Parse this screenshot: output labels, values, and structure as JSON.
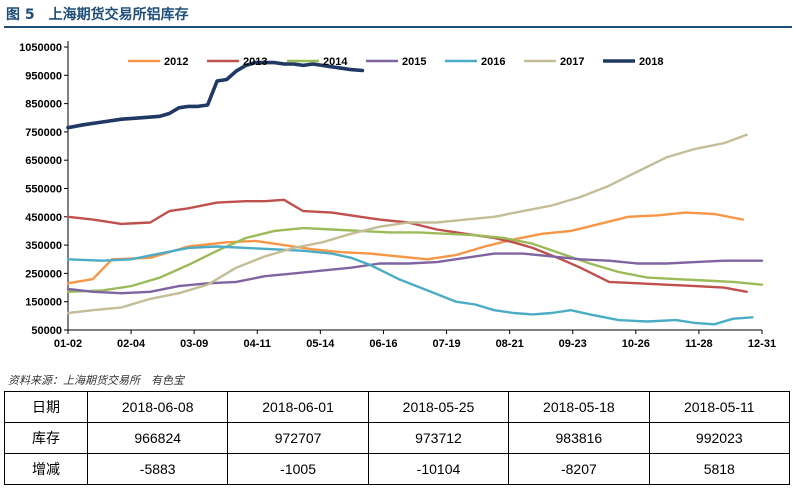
{
  "figure": {
    "number": "图 5",
    "title": "上海期货交易所铝库存"
  },
  "source": "资料来源：上海期货交易所　有色宝",
  "chart_data": {
    "type": "line",
    "title": "上海期货交易所铝库存",
    "xlabel": "",
    "ylabel": "",
    "x_ticks": [
      "01-02",
      "02-04",
      "03-09",
      "04-11",
      "05-14",
      "06-16",
      "07-19",
      "08-21",
      "09-23",
      "10-26",
      "11-28",
      "12-31"
    ],
    "x_range_days": [
      2,
      365
    ],
    "y_ticks": [
      50000,
      150000,
      250000,
      350000,
      450000,
      550000,
      650000,
      750000,
      850000,
      950000,
      1050000
    ],
    "ylim": [
      50000,
      1050000
    ],
    "grid": false,
    "legend": "top",
    "series": [
      {
        "name": "2012",
        "color": "#f79646",
        "x": [
          2,
          15,
          25,
          45,
          65,
          85,
          100,
          115,
          130,
          145,
          160,
          175,
          190,
          205,
          220,
          235,
          250,
          265,
          280,
          295,
          310,
          325,
          340,
          355
        ],
        "y": [
          215000,
          230000,
          300000,
          305000,
          345000,
          360000,
          365000,
          350000,
          335000,
          325000,
          320000,
          310000,
          300000,
          315000,
          345000,
          370000,
          390000,
          400000,
          425000,
          450000,
          455000,
          465000,
          460000,
          440000
        ]
      },
      {
        "name": "2013",
        "color": "#c0504d",
        "x": [
          2,
          15,
          30,
          45,
          55,
          65,
          80,
          95,
          105,
          115,
          125,
          140,
          155,
          165,
          180,
          195,
          210,
          225,
          235,
          245,
          260,
          270,
          285,
          300,
          315,
          330,
          345,
          357
        ],
        "y": [
          450000,
          440000,
          425000,
          430000,
          470000,
          480000,
          500000,
          505000,
          505000,
          510000,
          470000,
          465000,
          450000,
          440000,
          430000,
          405000,
          390000,
          375000,
          360000,
          340000,
          300000,
          270000,
          220000,
          215000,
          210000,
          205000,
          200000,
          185000
        ]
      },
      {
        "name": "2014",
        "color": "#9bbb59",
        "x": [
          2,
          20,
          35,
          50,
          65,
          80,
          95,
          110,
          125,
          140,
          155,
          170,
          185,
          200,
          215,
          230,
          245,
          260,
          275,
          290,
          305,
          320,
          335,
          350,
          365
        ],
        "y": [
          185000,
          190000,
          205000,
          235000,
          280000,
          330000,
          375000,
          400000,
          410000,
          405000,
          400000,
          395000,
          395000,
          390000,
          385000,
          375000,
          355000,
          320000,
          285000,
          255000,
          235000,
          230000,
          225000,
          220000,
          210000
        ]
      },
      {
        "name": "2015",
        "color": "#8064a2",
        "x": [
          2,
          15,
          30,
          45,
          60,
          75,
          90,
          105,
          120,
          135,
          150,
          165,
          180,
          195,
          210,
          225,
          240,
          255,
          270,
          285,
          300,
          315,
          330,
          345,
          365
        ],
        "y": [
          195000,
          185000,
          180000,
          185000,
          205000,
          215000,
          220000,
          240000,
          250000,
          260000,
          270000,
          285000,
          285000,
          290000,
          305000,
          320000,
          320000,
          310000,
          300000,
          295000,
          285000,
          285000,
          290000,
          295000,
          295000
        ]
      },
      {
        "name": "2016",
        "color": "#4bacc6",
        "x": [
          2,
          20,
          35,
          50,
          65,
          80,
          95,
          110,
          125,
          140,
          150,
          160,
          175,
          190,
          205,
          215,
          225,
          235,
          245,
          255,
          265,
          275,
          290,
          305,
          320,
          330,
          340,
          350,
          360
        ],
        "y": [
          300000,
          295000,
          300000,
          320000,
          340000,
          345000,
          340000,
          335000,
          330000,
          320000,
          305000,
          280000,
          230000,
          190000,
          150000,
          140000,
          120000,
          110000,
          105000,
          110000,
          120000,
          105000,
          85000,
          80000,
          85000,
          75000,
          70000,
          90000,
          95000
        ]
      },
      {
        "name": "2017",
        "color": "#c4bd97",
        "x": [
          2,
          15,
          30,
          45,
          60,
          75,
          90,
          105,
          120,
          135,
          150,
          165,
          180,
          195,
          210,
          225,
          240,
          255,
          270,
          285,
          300,
          315,
          330,
          345,
          357
        ],
        "y": [
          110000,
          120000,
          130000,
          160000,
          180000,
          210000,
          270000,
          310000,
          340000,
          360000,
          390000,
          415000,
          430000,
          430000,
          440000,
          450000,
          470000,
          490000,
          520000,
          560000,
          610000,
          660000,
          690000,
          710000,
          740000
        ]
      },
      {
        "name": "2018",
        "color": "#1f3864",
        "x": [
          2,
          10,
          20,
          30,
          40,
          50,
          55,
          60,
          65,
          70,
          75,
          80,
          85,
          90,
          95,
          100,
          105,
          110,
          115,
          120,
          125,
          130,
          135,
          140,
          145,
          150,
          156
        ],
        "y": [
          765000,
          775000,
          785000,
          795000,
          800000,
          805000,
          815000,
          835000,
          840000,
          840000,
          845000,
          930000,
          935000,
          965000,
          985000,
          995000,
          995000,
          995000,
          990000,
          990000,
          985000,
          990000,
          985000,
          980000,
          975000,
          970000,
          966824
        ]
      }
    ]
  },
  "table": {
    "rows": [
      {
        "label": "日期",
        "cells": [
          "2018-06-08",
          "2018-06-01",
          "2018-05-25",
          "2018-05-18",
          "2018-05-11"
        ]
      },
      {
        "label": "库存",
        "cells": [
          "966824",
          "972707",
          "973712",
          "983816",
          "992023"
        ]
      },
      {
        "label": "增减",
        "cells": [
          "-5883",
          "-1005",
          "-10104",
          "-8207",
          "5818"
        ]
      }
    ]
  }
}
